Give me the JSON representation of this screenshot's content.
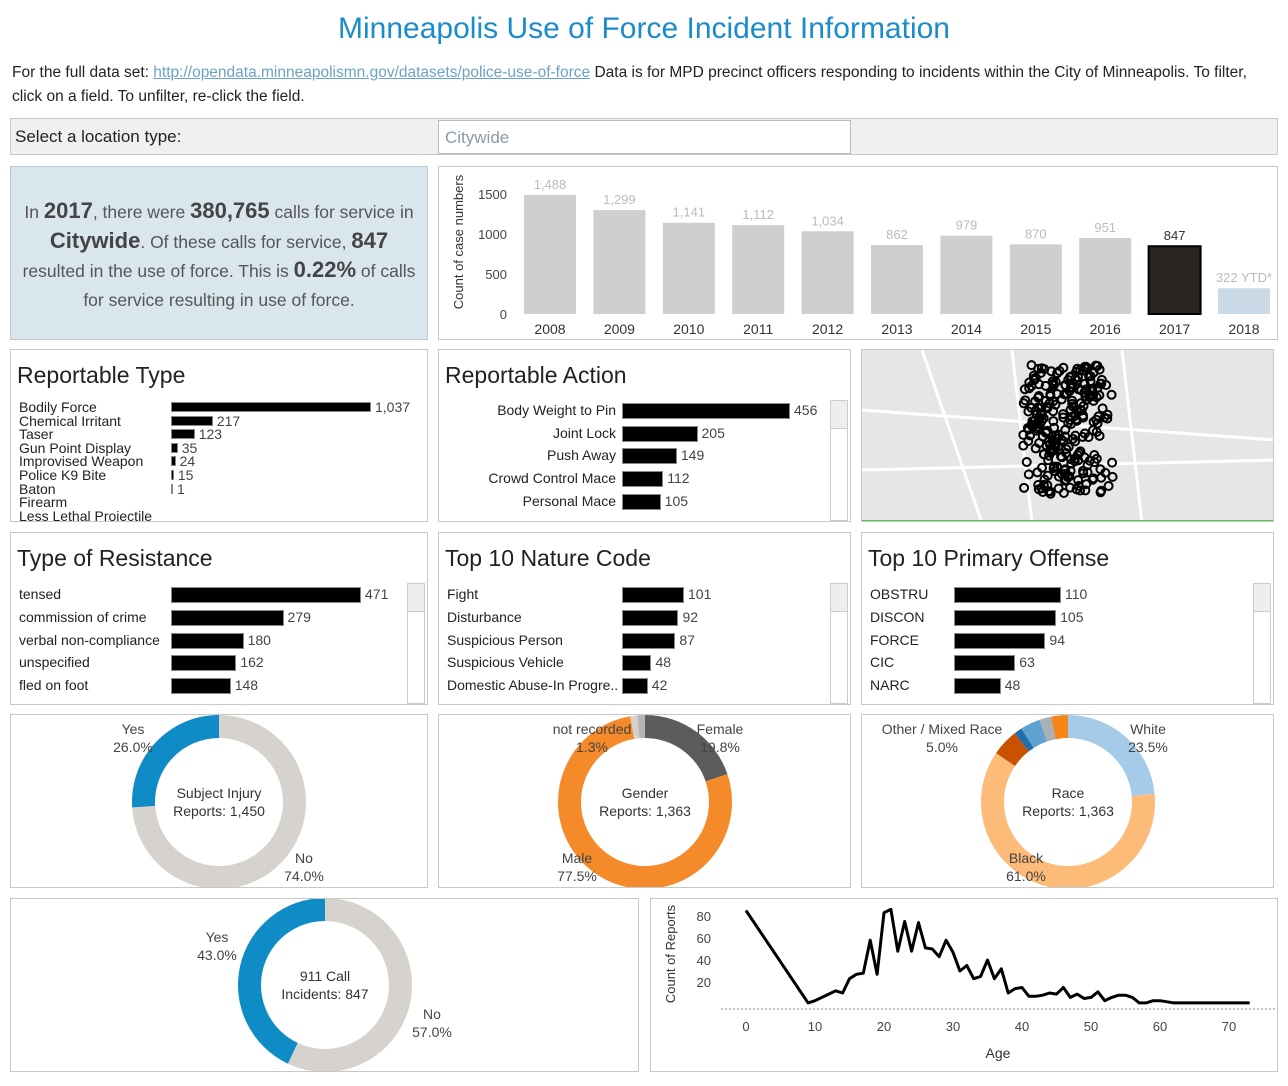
{
  "title": "Minneapolis Use of Force Incident Information",
  "intro": {
    "prefix": "For the full data set: ",
    "link": "http://opendata.minneapolismn.gov/datasets/police-use-of-force",
    "suffix": "  Data is for MPD precinct officers responding to incidents within the City of Minneapolis.  To filter, click on a field.  To unfilter, re-click the field."
  },
  "location": {
    "label": "Select a location type:",
    "value": "Citywide"
  },
  "summary": {
    "t1": "In ",
    "year": "2017",
    "t2": ", there were ",
    "calls": "380,765",
    "t3": " calls for service in ",
    "place": "Citywide",
    "t4": ".  Of these calls for service, ",
    "force": "847",
    "t5": " resulted in the use of force.  This is ",
    "pct": "0.22%",
    "t6": " of calls for service resulting in use of force."
  },
  "chart_data": [
    {
      "type": "bar",
      "id": "yearly",
      "ylabel": "Count of case numbers",
      "yticks": [
        0,
        500,
        1000,
        1500
      ],
      "categories": [
        "2008",
        "2009",
        "2010",
        "2011",
        "2012",
        "2013",
        "2014",
        "2015",
        "2016",
        "2017",
        "2018"
      ],
      "values": [
        1488,
        1299,
        1141,
        1112,
        1034,
        862,
        979,
        870,
        951,
        847,
        322
      ],
      "labels": [
        "1,488",
        "1,299",
        "1,141",
        "1,112",
        "1,034",
        "862",
        "979",
        "870",
        "951",
        "847",
        "322 YTD*"
      ],
      "selected": "2017",
      "colors": {
        "default": "#d0cfcd",
        "selected": "#2b2522",
        "ytd": "#c9d9e6"
      }
    },
    {
      "type": "bar",
      "id": "reportable_type",
      "title": "Reportable Type",
      "categories": [
        "Bodily Force",
        "Chemical Irritant",
        "Taser",
        "Gun Point Display",
        "Improvised Weapon",
        "Police K9 Bite",
        "Baton",
        "Firearm",
        "Less Lethal Projectile"
      ],
      "values": [
        1037,
        217,
        123,
        35,
        24,
        15,
        1,
        null,
        null
      ],
      "labels": [
        "1,037",
        "217",
        "123",
        "35",
        "24",
        "15",
        "1",
        "",
        ""
      ]
    },
    {
      "type": "bar",
      "id": "reportable_action",
      "title": "Reportable Action",
      "categories": [
        "Body Weight to Pin",
        "Joint Lock",
        "Push Away",
        "Crowd Control Mace",
        "Personal Mace"
      ],
      "values": [
        456,
        205,
        149,
        112,
        105
      ],
      "labels": [
        "456",
        "205",
        "149",
        "112",
        "105"
      ]
    },
    {
      "type": "bar",
      "id": "resistance",
      "title": "Type of Resistance",
      "categories": [
        "tensed",
        "commission of crime",
        "verbal non-compliance",
        "unspecified",
        "fled on foot"
      ],
      "values": [
        471,
        279,
        180,
        162,
        148
      ],
      "labels": [
        "471",
        "279",
        "180",
        "162",
        "148"
      ]
    },
    {
      "type": "bar",
      "id": "nature",
      "title": "Top 10 Nature Code",
      "categories": [
        "Fight",
        "Disturbance",
        "Suspicious Person",
        "Suspicious Vehicle",
        "Domestic Abuse-In Progre.."
      ],
      "values": [
        101,
        92,
        87,
        48,
        42
      ],
      "labels": [
        "101",
        "92",
        "87",
        "48",
        "42"
      ]
    },
    {
      "type": "bar",
      "id": "offense",
      "title": "Top 10 Primary Offense",
      "categories": [
        "OBSTRU",
        "DISCON",
        "FORCE",
        "CIC",
        "NARC"
      ],
      "values": [
        110,
        105,
        94,
        63,
        48
      ],
      "labels": [
        "110",
        "105",
        "94",
        "63",
        "48"
      ]
    },
    {
      "type": "pie",
      "id": "injury",
      "center": [
        "Subject Injury",
        "Reports: 1,450"
      ],
      "slices": [
        {
          "name": "Yes",
          "value": 26.0,
          "label": "26.0%",
          "color": "#0f8bc6"
        },
        {
          "name": "No",
          "value": 74.0,
          "label": "74.0%",
          "color": "#d6d2cd"
        }
      ]
    },
    {
      "type": "pie",
      "id": "gender",
      "center": [
        "Gender",
        "Reports: 1,363"
      ],
      "slices": [
        {
          "name": "Female",
          "value": 19.8,
          "label": "19.8%",
          "color": "#5c5c5c"
        },
        {
          "name": "Male",
          "value": 77.5,
          "label": "77.5%",
          "color": "#f58a2a"
        },
        {
          "name": "not recorded",
          "value": 1.3,
          "label": "1.3%",
          "color": "#d4d0cc"
        },
        {
          "value": 1.4,
          "color": "#b8b4b0"
        }
      ]
    },
    {
      "type": "pie",
      "id": "race",
      "center": [
        "Race",
        "Reports: 1,363"
      ],
      "slices": [
        {
          "name": "White",
          "value": 23.5,
          "label": "23.5%",
          "color": "#a6cbe8"
        },
        {
          "name": "Black",
          "value": 61.0,
          "label": "61.0%",
          "color": "#fdbb7a"
        },
        {
          "name": "Other / Mixed Race",
          "value": 5.0,
          "label": "5.0%",
          "color": "#c85200"
        },
        {
          "value": 1.5,
          "color": "#1f6fad"
        },
        {
          "value": 3.7,
          "color": "#5fa2d0"
        },
        {
          "value": 2.2,
          "color": "#a9b0b6"
        },
        {
          "value": 3.1,
          "color": "#f58518"
        }
      ]
    },
    {
      "type": "pie",
      "id": "call911",
      "center": [
        "911 Call",
        "Incidents: 847"
      ],
      "slices": [
        {
          "name": "Yes",
          "value": 43.0,
          "label": "43.0%",
          "color": "#0f8bc6"
        },
        {
          "name": "No",
          "value": 57.0,
          "label": "57.0%",
          "color": "#d6d2cd"
        }
      ]
    },
    {
      "type": "line",
      "id": "age",
      "xlabel": "Age",
      "ylabel": "Count of Reports",
      "xticks": [
        0,
        10,
        20,
        30,
        40,
        50,
        60,
        70
      ],
      "yticks": [
        20,
        40,
        60,
        80
      ],
      "x": [
        0,
        9,
        10,
        11,
        12,
        13,
        14,
        15,
        16,
        17,
        18,
        19,
        20,
        21,
        22,
        23,
        24,
        25,
        26,
        27,
        28,
        29,
        30,
        31,
        32,
        33,
        34,
        35,
        36,
        37,
        38,
        39,
        40,
        41,
        42,
        43,
        44,
        45,
        46,
        47,
        48,
        49,
        50,
        51,
        52,
        53,
        54,
        55,
        56,
        57,
        58,
        59,
        60,
        61,
        62,
        63,
        65,
        70,
        73
      ],
      "y": [
        85,
        1,
        3,
        6,
        9,
        12,
        10,
        23,
        27,
        28,
        58,
        27,
        83,
        86,
        48,
        75,
        48,
        74,
        51,
        50,
        43,
        58,
        47,
        30,
        35,
        23,
        25,
        40,
        23,
        32,
        10,
        14,
        15,
        7,
        7,
        8,
        10,
        9,
        15,
        6,
        9,
        5,
        6,
        11,
        3,
        6,
        8,
        8,
        6,
        1,
        1,
        3,
        3,
        2,
        1,
        1,
        1,
        1,
        1
      ]
    }
  ]
}
